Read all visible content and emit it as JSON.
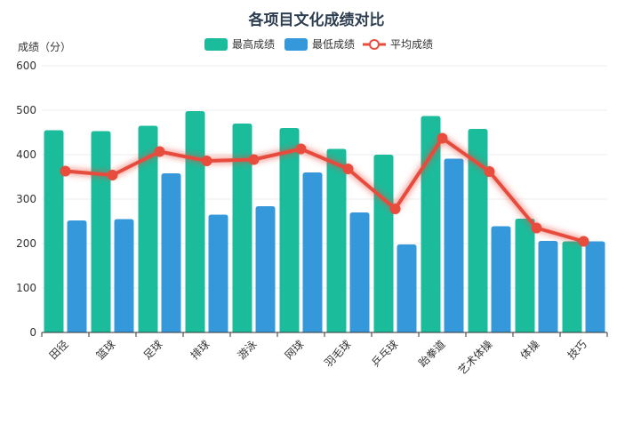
{
  "chart_data": {
    "type": "bar",
    "title": "各项目文化成绩对比",
    "ylabel": "成绩（分）",
    "xlabel": "",
    "ylim": [
      0,
      600
    ],
    "yticks": [
      0,
      100,
      200,
      300,
      400,
      500,
      600
    ],
    "grid": true,
    "legend_position": "top-center",
    "categories": [
      "田径",
      "篮球",
      "足球",
      "排球",
      "游泳",
      "网球",
      "羽毛球",
      "乒乓球",
      "跆拳道",
      "艺术体操",
      "体操",
      "技巧"
    ],
    "series": [
      {
        "name": "最高成绩",
        "type": "bar",
        "color": "#1abc9c",
        "values": [
          455,
          453,
          465,
          498,
          470,
          460,
          413,
          400,
          487,
          458,
          256,
          205
        ]
      },
      {
        "name": "最低成绩",
        "type": "bar",
        "color": "#3498db",
        "values": [
          252,
          255,
          358,
          265,
          284,
          360,
          270,
          198,
          391,
          239,
          206,
          205
        ]
      },
      {
        "name": "平均成绩",
        "type": "line",
        "color": "#e74c3c",
        "values": [
          363,
          354,
          407,
          386,
          389,
          413,
          368,
          278,
          437,
          362,
          235,
          205
        ]
      }
    ]
  }
}
